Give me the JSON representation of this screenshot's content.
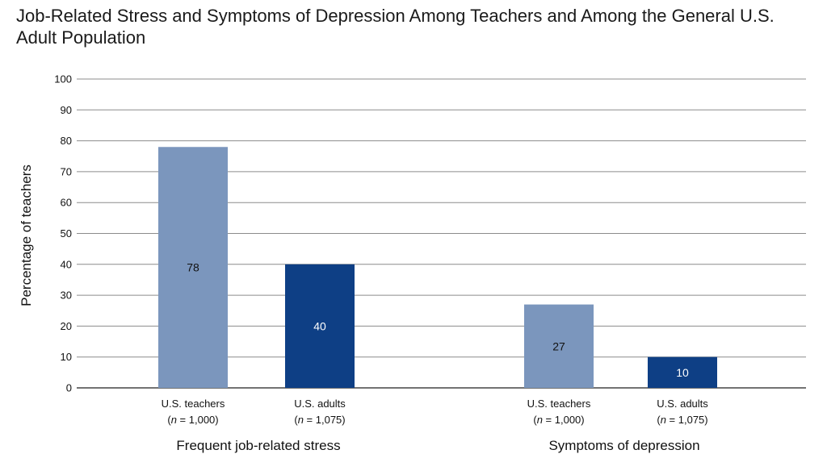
{
  "chart_data": {
    "type": "bar",
    "title": "Job-Related Stress and Symptoms of Depression Among Teachers and Among the General U.S. Adult Population",
    "ylabel": "Percentage of teachers",
    "xlabel": "",
    "ylim": [
      0,
      100
    ],
    "yticks": [
      0,
      10,
      20,
      30,
      40,
      50,
      60,
      70,
      80,
      90,
      100
    ],
    "grid": true,
    "colors": {
      "teachers": "#7b96bd",
      "adults": "#0e3f85",
      "teachers_label": "#111111",
      "adults_label": "#ffffff"
    },
    "groups": [
      {
        "label": "Frequent job-related stress",
        "bars": [
          {
            "key": "teachers",
            "line1": "U.S. teachers",
            "n_prefix": "n",
            "n_rest": " = 1,000)",
            "value": 78,
            "value_label": "78"
          },
          {
            "key": "adults",
            "line1": "U.S. adults",
            "n_prefix": "n",
            "n_rest": " = 1,075)",
            "value": 40,
            "value_label": "40"
          }
        ]
      },
      {
        "label": "Symptoms of depression",
        "bars": [
          {
            "key": "teachers",
            "line1": "U.S. teachers",
            "n_prefix": "n",
            "n_rest": " = 1,000)",
            "value": 27,
            "value_label": "27"
          },
          {
            "key": "adults",
            "line1": "U.S. adults",
            "n_prefix": "n",
            "n_rest": " = 1,075)",
            "value": 10,
            "value_label": "10"
          }
        ]
      }
    ]
  }
}
